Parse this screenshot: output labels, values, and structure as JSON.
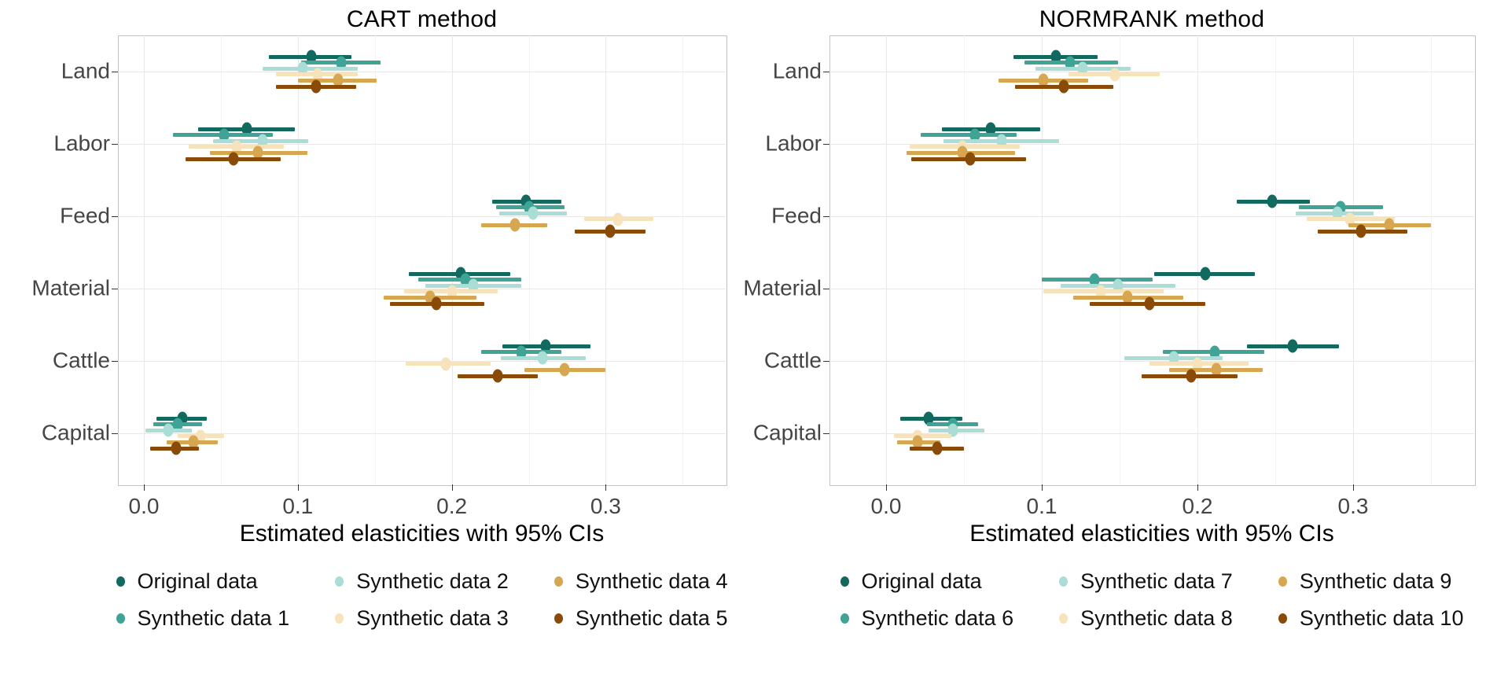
{
  "page": {
    "background": "#ffffff",
    "series_colors": [
      "#11695f",
      "#3fa396",
      "#aaddd6",
      "#f6e3bb",
      "#d6a650",
      "#8a4a08"
    ]
  },
  "chart_data": [
    {
      "type": "scatter",
      "variant": "dot-and-95ci-interval, dodged by series",
      "title": "CART method",
      "xlabel": "Estimated elasticities with 95% CIs",
      "ylabel": "",
      "categories": [
        "Land",
        "Labor",
        "Feed",
        "Material",
        "Cattle",
        "Capital"
      ],
      "xticks": [
        0.0,
        0.1,
        0.2,
        0.3
      ],
      "xlim": [
        -0.022,
        0.378
      ],
      "grid": "major and minor vertical, major horizontal",
      "legend_position": "bottom",
      "series": [
        {
          "name": "Original data",
          "color": "#11695f",
          "estimates": [
            0.109,
            0.067,
            0.248,
            0.206,
            0.261,
            0.025
          ],
          "ci_low": [
            0.081,
            0.035,
            0.226,
            0.172,
            0.233,
            0.008
          ],
          "ci_high": [
            0.135,
            0.098,
            0.271,
            0.238,
            0.29,
            0.041
          ]
        },
        {
          "name": "Synthetic data 1",
          "color": "#3fa396",
          "estimates": [
            0.128,
            0.052,
            0.25,
            0.209,
            0.245,
            0.022
          ],
          "ci_low": [
            0.102,
            0.019,
            0.229,
            0.178,
            0.219,
            0.006
          ],
          "ci_high": [
            0.154,
            0.084,
            0.273,
            0.245,
            0.271,
            0.038
          ]
        },
        {
          "name": "Synthetic data 2",
          "color": "#aaddd6",
          "estimates": [
            0.103,
            0.077,
            0.253,
            0.214,
            0.259,
            0.016
          ],
          "ci_low": [
            0.077,
            0.045,
            0.231,
            0.183,
            0.232,
            0.001
          ],
          "ci_high": [
            0.139,
            0.107,
            0.275,
            0.245,
            0.287,
            0.031
          ]
        },
        {
          "name": "Synthetic data 3",
          "color": "#f6e3bb",
          "estimates": [
            0.113,
            0.06,
            0.308,
            0.2,
            0.196,
            0.037
          ],
          "ci_low": [
            0.086,
            0.029,
            0.286,
            0.169,
            0.17,
            0.022
          ],
          "ci_high": [
            0.139,
            0.091,
            0.331,
            0.23,
            0.225,
            0.052
          ]
        },
        {
          "name": "Synthetic data 4",
          "color": "#d6a650",
          "estimates": [
            0.126,
            0.074,
            0.241,
            0.186,
            0.273,
            0.032
          ],
          "ci_low": [
            0.1,
            0.043,
            0.219,
            0.156,
            0.247,
            0.015
          ],
          "ci_high": [
            0.151,
            0.106,
            0.262,
            0.216,
            0.3,
            0.048
          ]
        },
        {
          "name": "Synthetic data 5",
          "color": "#8a4a08",
          "estimates": [
            0.112,
            0.058,
            0.303,
            0.19,
            0.23,
            0.021
          ],
          "ci_low": [
            0.086,
            0.027,
            0.28,
            0.16,
            0.204,
            0.004
          ],
          "ci_high": [
            0.138,
            0.089,
            0.326,
            0.221,
            0.256,
            0.036
          ]
        }
      ]
    },
    {
      "type": "scatter",
      "variant": "dot-and-95ci-interval, dodged by series",
      "title": "NORMRANK method",
      "xlabel": "Estimated elasticities with 95% CIs",
      "ylabel": "",
      "categories": [
        "Land",
        "Labor",
        "Feed",
        "Material",
        "Cattle",
        "Capital"
      ],
      "xticks": [
        0.0,
        0.1,
        0.2,
        0.3
      ],
      "xlim": [
        -0.036,
        0.378
      ],
      "grid": "major and minor vertical, major horizontal",
      "legend_position": "bottom",
      "series": [
        {
          "name": "Original data",
          "color": "#11695f",
          "estimates": [
            0.109,
            0.067,
            0.248,
            0.205,
            0.261,
            0.027
          ],
          "ci_low": [
            0.082,
            0.036,
            0.225,
            0.172,
            0.232,
            0.009
          ],
          "ci_high": [
            0.136,
            0.099,
            0.272,
            0.237,
            0.291,
            0.049
          ]
        },
        {
          "name": "Synthetic data 6",
          "color": "#3fa396",
          "estimates": [
            0.118,
            0.057,
            0.292,
            0.134,
            0.211,
            0.043
          ],
          "ci_low": [
            0.089,
            0.022,
            0.265,
            0.1,
            0.178,
            0.026
          ],
          "ci_high": [
            0.149,
            0.084,
            0.319,
            0.171,
            0.243,
            0.059
          ]
        },
        {
          "name": "Synthetic data 7",
          "color": "#aaddd6",
          "estimates": [
            0.126,
            0.074,
            0.29,
            0.149,
            0.185,
            0.043
          ],
          "ci_low": [
            0.096,
            0.037,
            0.263,
            0.112,
            0.153,
            0.027
          ],
          "ci_high": [
            0.157,
            0.111,
            0.313,
            0.186,
            0.216,
            0.063
          ]
        },
        {
          "name": "Synthetic data 8",
          "color": "#f6e3bb",
          "estimates": [
            0.147,
            0.049,
            0.298,
            0.138,
            0.2,
            0.02
          ],
          "ci_low": [
            0.117,
            0.015,
            0.27,
            0.101,
            0.169,
            0.005
          ],
          "ci_high": [
            0.176,
            0.086,
            0.327,
            0.178,
            0.233,
            0.042
          ]
        },
        {
          "name": "Synthetic data 9",
          "color": "#d6a650",
          "estimates": [
            0.101,
            0.049,
            0.323,
            0.155,
            0.212,
            0.02
          ],
          "ci_low": [
            0.072,
            0.013,
            0.297,
            0.12,
            0.182,
            0.007
          ],
          "ci_high": [
            0.13,
            0.083,
            0.35,
            0.191,
            0.242,
            0.035
          ]
        },
        {
          "name": "Synthetic data 10",
          "color": "#8a4a08",
          "estimates": [
            0.114,
            0.054,
            0.305,
            0.169,
            0.196,
            0.033
          ],
          "ci_low": [
            0.083,
            0.016,
            0.277,
            0.131,
            0.164,
            0.015
          ],
          "ci_high": [
            0.146,
            0.09,
            0.335,
            0.205,
            0.226,
            0.05
          ]
        }
      ]
    }
  ]
}
